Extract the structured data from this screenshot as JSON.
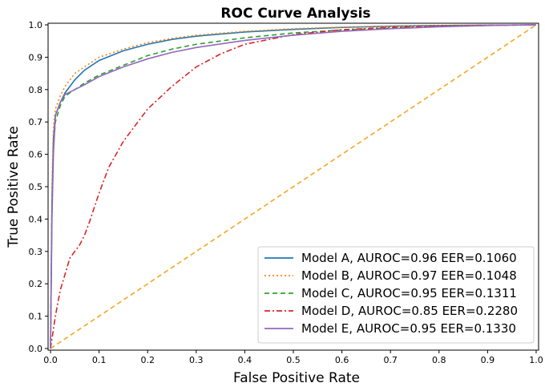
{
  "chart_data": {
    "type": "line",
    "title": "ROC Curve Analysis",
    "xlabel": "False Positive Rate",
    "ylabel": "True Positive Rate",
    "xlim": [
      -0.005,
      1.005
    ],
    "ylim": [
      -0.005,
      1.005
    ],
    "xticks": [
      "0.0",
      "0.1",
      "0.2",
      "0.3",
      "0.4",
      "0.5",
      "0.6",
      "0.7",
      "0.8",
      "0.9",
      "1.0"
    ],
    "yticks": [
      "0.0",
      "0.1",
      "0.2",
      "0.3",
      "0.4",
      "0.5",
      "0.6",
      "0.7",
      "0.8",
      "0.9",
      "1.0"
    ],
    "grid": false,
    "legend_position": "lower-right",
    "series": [
      {
        "name": "Model A, AUROC=0.96 EER=0.1060",
        "color": "#1f77b4",
        "dash": "solid",
        "x": [
          0,
          0.003,
          0.006,
          0.01,
          0.02,
          0.03,
          0.05,
          0.07,
          0.1,
          0.15,
          0.2,
          0.25,
          0.3,
          0.4,
          0.5,
          0.6,
          0.7,
          0.8,
          0.9,
          1.0
        ],
        "y": [
          0,
          0.45,
          0.65,
          0.72,
          0.76,
          0.79,
          0.83,
          0.86,
          0.89,
          0.92,
          0.94,
          0.955,
          0.965,
          0.978,
          0.986,
          0.992,
          0.996,
          0.998,
          0.999,
          1.0
        ]
      },
      {
        "name": "Model B, AUROC=0.97 EER=0.1048",
        "color": "#ff7f0e",
        "dash": "dotted",
        "x": [
          0,
          0.003,
          0.006,
          0.01,
          0.02,
          0.03,
          0.05,
          0.07,
          0.1,
          0.15,
          0.2,
          0.25,
          0.3,
          0.4,
          0.5,
          0.6,
          0.7,
          0.8,
          0.9,
          1.0
        ],
        "y": [
          0,
          0.5,
          0.68,
          0.74,
          0.78,
          0.81,
          0.85,
          0.87,
          0.9,
          0.925,
          0.945,
          0.958,
          0.968,
          0.98,
          0.988,
          0.993,
          0.996,
          0.998,
          0.999,
          1.0
        ]
      },
      {
        "name": "Model C, AUROC=0.95 EER=0.1311",
        "color": "#2ca02c",
        "dash": "dashed",
        "x": [
          0,
          0.003,
          0.006,
          0.01,
          0.02,
          0.03,
          0.05,
          0.07,
          0.1,
          0.15,
          0.2,
          0.25,
          0.3,
          0.4,
          0.5,
          0.6,
          0.7,
          0.8,
          0.9,
          1.0
        ],
        "y": [
          0,
          0.45,
          0.62,
          0.7,
          0.75,
          0.78,
          0.8,
          0.82,
          0.845,
          0.875,
          0.905,
          0.925,
          0.94,
          0.96,
          0.975,
          0.984,
          0.99,
          0.995,
          0.998,
          1.0
        ]
      },
      {
        "name": "Model D, AUROC=0.85 EER=0.2280",
        "color": "#d62728",
        "dash": "dashdot",
        "x": [
          0,
          0.005,
          0.01,
          0.02,
          0.03,
          0.04,
          0.05,
          0.06,
          0.07,
          0.08,
          0.1,
          0.12,
          0.15,
          0.18,
          0.2,
          0.25,
          0.3,
          0.35,
          0.4,
          0.5,
          0.6,
          0.7,
          0.8,
          0.9,
          1.0
        ],
        "y": [
          0,
          0.05,
          0.1,
          0.18,
          0.23,
          0.28,
          0.3,
          0.32,
          0.35,
          0.39,
          0.48,
          0.56,
          0.64,
          0.7,
          0.74,
          0.81,
          0.87,
          0.91,
          0.94,
          0.97,
          0.985,
          0.992,
          0.996,
          0.999,
          1.0
        ]
      },
      {
        "name": "Model E, AUROC=0.95 EER=0.1330",
        "color": "#9467bd",
        "dash": "solid",
        "x": [
          0,
          0.003,
          0.006,
          0.01,
          0.02,
          0.03,
          0.05,
          0.07,
          0.1,
          0.15,
          0.2,
          0.25,
          0.3,
          0.4,
          0.5,
          0.6,
          0.7,
          0.8,
          0.9,
          1.0
        ],
        "y": [
          0,
          0.4,
          0.6,
          0.72,
          0.76,
          0.785,
          0.8,
          0.815,
          0.84,
          0.87,
          0.895,
          0.915,
          0.93,
          0.952,
          0.968,
          0.98,
          0.988,
          0.994,
          0.998,
          1.0
        ]
      },
      {
        "name": "",
        "color": "#f5a623",
        "dash": "dashed",
        "x": [
          0,
          1
        ],
        "y": [
          0,
          1
        ]
      }
    ]
  }
}
